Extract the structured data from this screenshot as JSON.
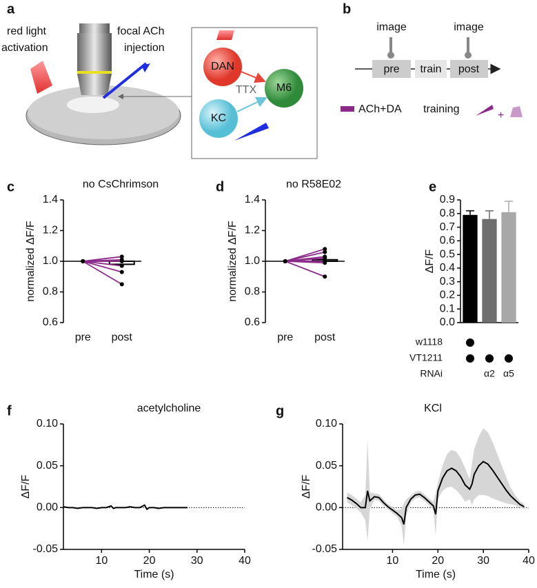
{
  "diagram_a": {
    "label": "a",
    "light_text": [
      "red light",
      "activation"
    ],
    "injection_text": [
      "focal ACh",
      "injection"
    ],
    "nodes": [
      "DAN",
      "M6",
      "KC"
    ],
    "center_text": "TTX"
  },
  "diagram_b": {
    "label": "b",
    "image_labels": [
      "image",
      "image"
    ],
    "steps": [
      "pre",
      "train",
      "post"
    ],
    "legend_text": "ACh+DA",
    "legend_training": "training",
    "legend_plus": "+"
  },
  "chart_data": [
    {
      "type": "slope",
      "panel_label": "c",
      "title": "no CsChrimson",
      "ylabel": "normalized ΔF/F",
      "categories": [
        "pre",
        "post"
      ],
      "color": "#8b2a8b",
      "series": [
        {
          "values": [
            1.0,
            1.03
          ]
        },
        {
          "values": [
            1.0,
            1.01
          ]
        },
        {
          "values": [
            1.0,
            1.0
          ]
        },
        {
          "values": [
            1.0,
            0.97
          ]
        },
        {
          "values": [
            1.0,
            0.93
          ]
        },
        {
          "values": [
            1.0,
            0.85
          ]
        }
      ],
      "bar_value": 0.98,
      "hline": 1.0,
      "ylim": [
        0.6,
        1.4
      ],
      "yticks": [
        0.6,
        0.8,
        {
          "value": 1.0,
          "label": "1.0"
        },
        1.2,
        1.4
      ]
    },
    {
      "type": "slope",
      "panel_label": "d",
      "title": "no R58E02",
      "ylabel": "normalized ΔF/F",
      "categories": [
        "pre",
        "post"
      ],
      "color": "#8b2a8b",
      "series": [
        {
          "values": [
            1.0,
            1.08
          ]
        },
        {
          "values": [
            1.0,
            1.06
          ]
        },
        {
          "values": [
            1.0,
            1.03
          ]
        },
        {
          "values": [
            1.0,
            1.02
          ]
        },
        {
          "values": [
            1.0,
            1.0
          ]
        },
        {
          "values": [
            1.0,
            0.99
          ]
        },
        {
          "values": [
            1.0,
            0.9
          ]
        }
      ],
      "bar_value": 1.01,
      "hline": 1.0,
      "ylim": [
        0.6,
        1.4
      ],
      "yticks": [
        0.6,
        0.8,
        {
          "value": 1.0,
          "label": "1.0"
        },
        1.2,
        1.4
      ]
    },
    {
      "type": "bar",
      "panel_label": "e",
      "ylabel": "ΔF/F",
      "values": [
        0.79,
        0.76,
        0.81
      ],
      "errors": [
        0.03,
        0.06,
        0.08
      ],
      "colors": [
        "#000000",
        "#6e6e6e",
        "#a8a8a8"
      ],
      "ylim": [
        0,
        0.9
      ],
      "yticks": [
        {
          "value": 0,
          "label": "0.0"
        },
        0.1,
        0.2,
        0.3,
        0.4,
        0.5,
        0.6,
        0.7,
        0.8,
        0.9
      ],
      "genotype_rows": [
        {
          "label": "w1118",
          "present": [
            true,
            false,
            false
          ]
        },
        {
          "label": "VT1211",
          "present": [
            true,
            true,
            true
          ]
        },
        {
          "label": "RNAi",
          "present": [
            false,
            false,
            false
          ],
          "texts": [
            null,
            "α2",
            "α5"
          ]
        }
      ]
    },
    {
      "type": "line",
      "panel_label": "f",
      "title": "acetylcholine",
      "xlabel": "Time (s)",
      "ylabel": "ΔF/F",
      "color": "#000000",
      "x": [
        2,
        3,
        4,
        5,
        6,
        7,
        8,
        9,
        10,
        11,
        12,
        12.5,
        13,
        14,
        15,
        16,
        17,
        18,
        19,
        19.5,
        20,
        21,
        22,
        23,
        24,
        25,
        26,
        27,
        28
      ],
      "values": [
        0.001,
        0.0,
        0.0,
        -0.001,
        0.0,
        0.0,
        0.0,
        -0.001,
        0.0,
        0.0,
        0.002,
        -0.001,
        0.0,
        0.0,
        0.0,
        0.001,
        0.0,
        0.0,
        0.003,
        -0.002,
        0.0,
        0.0,
        -0.001,
        0.0,
        0.0,
        0.0,
        0.0,
        0.0,
        0.0
      ],
      "hline": 0,
      "xlim": [
        2,
        40
      ],
      "xticks": [
        10,
        20,
        30,
        40
      ],
      "ylim": [
        -0.05,
        0.1
      ],
      "yticks": [
        {
          "value": -0.05,
          "label": "-0.05"
        },
        {
          "value": 0,
          "label": "0.00"
        },
        0.05,
        {
          "value": 0.1,
          "label": "0.10"
        }
      ]
    },
    {
      "type": "line",
      "panel_label": "g",
      "title": "KCl",
      "xlabel": "Time (s)",
      "ylabel": "ΔF/F",
      "color": "#000000",
      "band_color": "#d6d6d6",
      "x": [
        0,
        1,
        2,
        3,
        4,
        4.5,
        5,
        6,
        7,
        8,
        9,
        10,
        11,
        12,
        12.5,
        13,
        14,
        15,
        16,
        17,
        18,
        19,
        19.5,
        20,
        21,
        22,
        23,
        24,
        25,
        26,
        27,
        27.5,
        28,
        29,
        30,
        31,
        32,
        33,
        34,
        35,
        36,
        37,
        38,
        39
      ],
      "values": [
        0.012,
        0.009,
        0.005,
        0.0,
        0.0,
        0.02,
        0.008,
        0.013,
        0.012,
        0.006,
        0.001,
        -0.003,
        -0.007,
        -0.012,
        -0.02,
        0.0,
        0.01,
        0.015,
        0.016,
        0.012,
        0.007,
        0.002,
        -0.008,
        0.02,
        0.035,
        0.044,
        0.047,
        0.044,
        0.037,
        0.027,
        0.022,
        0.028,
        0.04,
        0.05,
        0.055,
        0.052,
        0.045,
        0.037,
        0.029,
        0.021,
        0.014,
        0.009,
        0.004,
        0.001
      ],
      "errors": [
        0.006,
        0.006,
        0.006,
        0.006,
        0.015,
        0.06,
        0.01,
        0.004,
        0.004,
        0.004,
        0.003,
        0.004,
        0.004,
        0.01,
        0.025,
        0.01,
        0.004,
        0.004,
        0.004,
        0.004,
        0.004,
        0.005,
        0.025,
        0.01,
        0.015,
        0.02,
        0.022,
        0.023,
        0.022,
        0.02,
        0.012,
        0.025,
        0.03,
        0.035,
        0.04,
        0.038,
        0.034,
        0.028,
        0.022,
        0.016,
        0.01,
        0.006,
        0.004,
        0.003
      ],
      "hline": 0,
      "xlim": [
        -1,
        40
      ],
      "xticks": [
        10,
        20,
        30,
        40
      ],
      "ylim": [
        -0.05,
        0.1
      ],
      "yticks": [
        {
          "value": -0.05,
          "label": "-0.05"
        },
        {
          "value": 0,
          "label": "0.00"
        },
        0.05,
        {
          "value": 0.1,
          "label": "0.10"
        }
      ]
    }
  ]
}
